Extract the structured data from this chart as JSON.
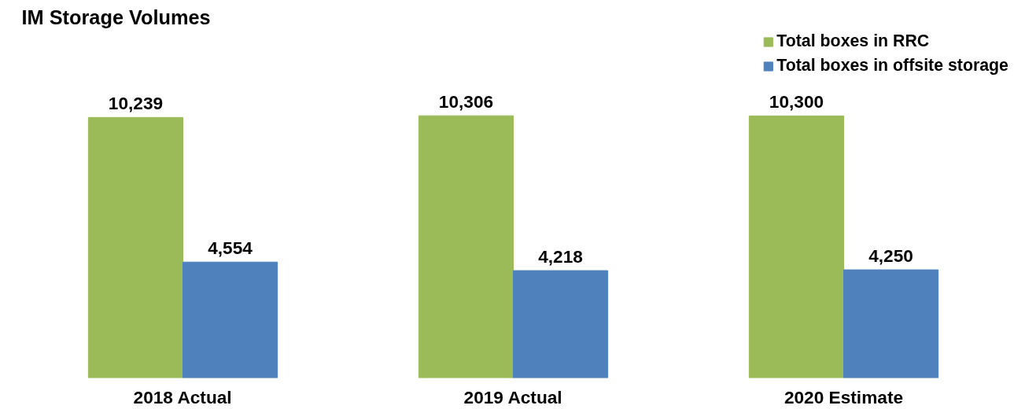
{
  "chart_data": {
    "type": "bar",
    "title": "IM Storage Volumes",
    "categories": [
      "2018 Actual",
      "2019 Actual",
      "2020 Estimate"
    ],
    "series": [
      {
        "name": "Total boxes in RRC",
        "color": "#9bbb59",
        "values": [
          10239,
          10306,
          10300
        ],
        "value_labels": [
          "10,239",
          "10,306",
          "10,300"
        ]
      },
      {
        "name": "Total boxes in offsite storage",
        "color": "#4f81bd",
        "values": [
          4554,
          4218,
          4250
        ],
        "value_labels": [
          "4,554",
          "4,218",
          "4,250"
        ]
      }
    ],
    "tick_labels": "x",
    "grid": false,
    "legend": "top right"
  }
}
